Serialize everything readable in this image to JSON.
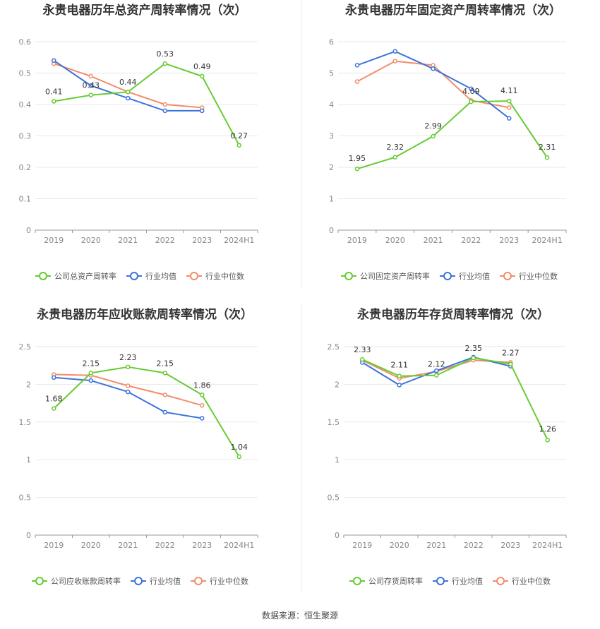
{
  "colors": {
    "company": "#66cc33",
    "industry_mean": "#3d73dd",
    "industry_median": "#f28d6b",
    "grid": "#e8e8e8",
    "axis": "#999999"
  },
  "footer": {
    "source": "数据来源：恒生聚源"
  },
  "chart_data": [
    {
      "type": "line",
      "title": "永贵电器历年总资产周转率情况（次）",
      "categories": [
        "2019",
        "2020",
        "2021",
        "2022",
        "2023",
        "2024H1"
      ],
      "ylim": [
        0,
        0.6
      ],
      "yticks": [
        "0",
        "0.1",
        "0.2",
        "0.3",
        "0.4",
        "0.5",
        "0.6"
      ],
      "grid": true,
      "legend_position": "bottom",
      "series": [
        {
          "name": "公司总资产周转率",
          "key": "company",
          "values": [
            0.41,
            0.43,
            0.44,
            0.53,
            0.49,
            0.27
          ],
          "labels": [
            "0.41",
            "0.43",
            "0.44",
            "0.53",
            "0.49",
            "0.27"
          ]
        },
        {
          "name": "行业均值",
          "key": "industry_mean",
          "values": [
            0.54,
            0.46,
            0.42,
            0.38,
            0.38,
            null
          ]
        },
        {
          "name": "行业中位数",
          "key": "industry_median",
          "values": [
            0.53,
            0.49,
            0.44,
            0.4,
            0.39,
            null
          ]
        }
      ]
    },
    {
      "type": "line",
      "title": "永贵电器历年固定资产周转率情况（次）",
      "categories": [
        "2019",
        "2020",
        "2021",
        "2022",
        "2023",
        "2024H1"
      ],
      "ylim": [
        0,
        6
      ],
      "yticks": [
        "0",
        "1",
        "2",
        "3",
        "4",
        "5",
        "6"
      ],
      "grid": true,
      "legend_position": "bottom",
      "series": [
        {
          "name": "公司固定资产周转率",
          "key": "company",
          "values": [
            1.95,
            2.32,
            2.99,
            4.09,
            4.11,
            2.31
          ],
          "labels": [
            "1.95",
            "2.32",
            "2.99",
            "4.09",
            "4.11",
            "2.31"
          ]
        },
        {
          "name": "行业均值",
          "key": "industry_mean",
          "values": [
            5.25,
            5.69,
            5.14,
            4.5,
            3.56,
            null
          ]
        },
        {
          "name": "行业中位数",
          "key": "industry_median",
          "values": [
            4.73,
            5.38,
            5.25,
            4.13,
            3.9,
            null
          ]
        }
      ]
    },
    {
      "type": "line",
      "title": "永贵电器历年应收账款周转率情况（次）",
      "categories": [
        "2019",
        "2020",
        "2021",
        "2022",
        "2023",
        "2024H1"
      ],
      "ylim": [
        0,
        2.5
      ],
      "yticks": [
        "0",
        "0.5",
        "1",
        "1.5",
        "2",
        "2.5"
      ],
      "grid": true,
      "legend_position": "bottom",
      "series": [
        {
          "name": "公司应收账款周转率",
          "key": "company",
          "values": [
            1.68,
            2.15,
            2.23,
            2.15,
            1.86,
            1.04
          ],
          "labels": [
            "1.68",
            "2.15",
            "2.23",
            "2.15",
            "1.86",
            "1.04"
          ]
        },
        {
          "name": "行业均值",
          "key": "industry_mean",
          "values": [
            2.09,
            2.05,
            1.9,
            1.63,
            1.55,
            null
          ]
        },
        {
          "name": "行业中位数",
          "key": "industry_median",
          "values": [
            2.13,
            2.12,
            1.98,
            1.86,
            1.72,
            null
          ]
        }
      ]
    },
    {
      "type": "line",
      "title": "永贵电器历年存货周转率情况（次）",
      "categories": [
        "2019",
        "2020",
        "2021",
        "2022",
        "2023",
        "2024H1"
      ],
      "ylim": [
        0,
        2.5
      ],
      "yticks": [
        "0",
        "0.5",
        "1",
        "1.5",
        "2",
        "2.5"
      ],
      "grid": true,
      "legend_position": "bottom",
      "series": [
        {
          "name": "公司存货周转率",
          "key": "company",
          "values": [
            2.33,
            2.11,
            2.12,
            2.35,
            2.27,
            1.26
          ],
          "labels": [
            "2.33",
            "2.11",
            "2.12",
            "2.35",
            "2.27",
            "1.26"
          ]
        },
        {
          "name": "行业均值",
          "key": "industry_mean",
          "values": [
            2.29,
            1.99,
            2.18,
            2.36,
            2.24,
            null
          ]
        },
        {
          "name": "行业中位数",
          "key": "industry_median",
          "values": [
            2.32,
            2.08,
            2.17,
            2.32,
            2.29,
            null
          ]
        }
      ]
    }
  ]
}
